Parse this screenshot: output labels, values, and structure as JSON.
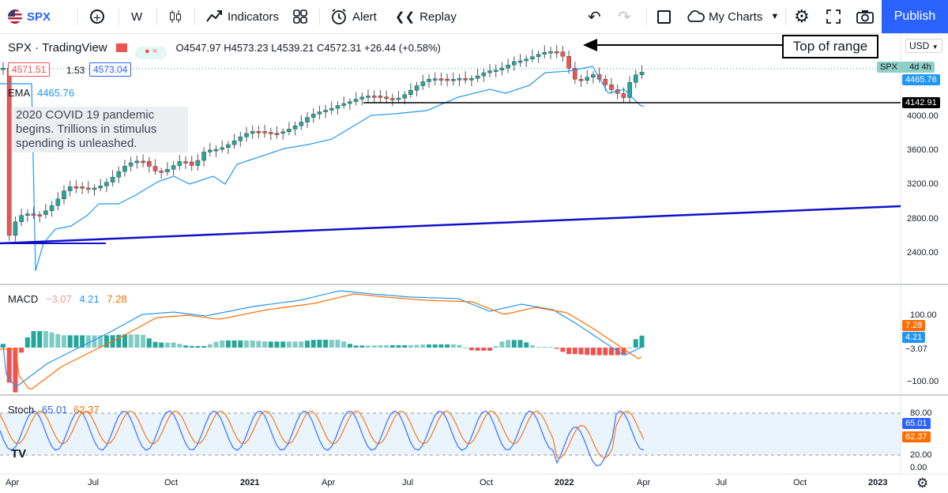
{
  "toolbar": {
    "symbol": "SPX",
    "add_icon": "plus-circle-icon",
    "interval": "W",
    "indicators_label": "Indicators",
    "alert_label": "Alert",
    "replay_label": "Replay",
    "my_charts_label": "My Charts",
    "publish_label": "Publish"
  },
  "legend": {
    "title": "SPX · TradingView",
    "ohlc": "O4547.97 H4573.23 L4539.21 C4572.31 +26.44 (+0.58%)",
    "bid": "4571.51",
    "spread": "1.53",
    "ask": "4573.04",
    "ema_label": "EMA",
    "ema_value": "4465.76",
    "currency": "USD"
  },
  "note_text": "2020 COVID 19 pandemic begins. Trillions in stimulus spending is unleashed.",
  "callout_text": "Top of range",
  "price_axis": {
    "ticks": [
      "4000.00",
      "3600.00",
      "3200.00",
      "2800.00",
      "2400.00"
    ],
    "last_label": "4465.76",
    "line_label": "4142.91",
    "symbol_tag": "SPX",
    "countdown": "4d 4h"
  },
  "macd": {
    "label": "MACD",
    "hist": "−3.07",
    "macd": "4.21",
    "signal": "7.28",
    "ticks": [
      "100.00",
      "−100.00"
    ],
    "tag_signal": "7.28",
    "tag_macd": "4.21",
    "tag_hist": "−3.07"
  },
  "stoch": {
    "label": "Stoch",
    "k": "65.01",
    "d": "62.37",
    "ticks": [
      "80.00",
      "20.00",
      "0.00"
    ],
    "tag_k": "65.01",
    "tag_d": "62.37"
  },
  "time_axis": [
    "Apr",
    "Jul",
    "Oct",
    "2021",
    "Apr",
    "Jul",
    "Oct",
    "2022",
    "Apr",
    "Jul",
    "Oct",
    "2023"
  ],
  "colors": {
    "up": "#26a69a",
    "down": "#ef5350",
    "ema": "#2196f3",
    "trendline": "#1010c8",
    "macd_line": "#2196f3",
    "signal_line": "#ff6d00",
    "publish": "#2962ff"
  }
}
